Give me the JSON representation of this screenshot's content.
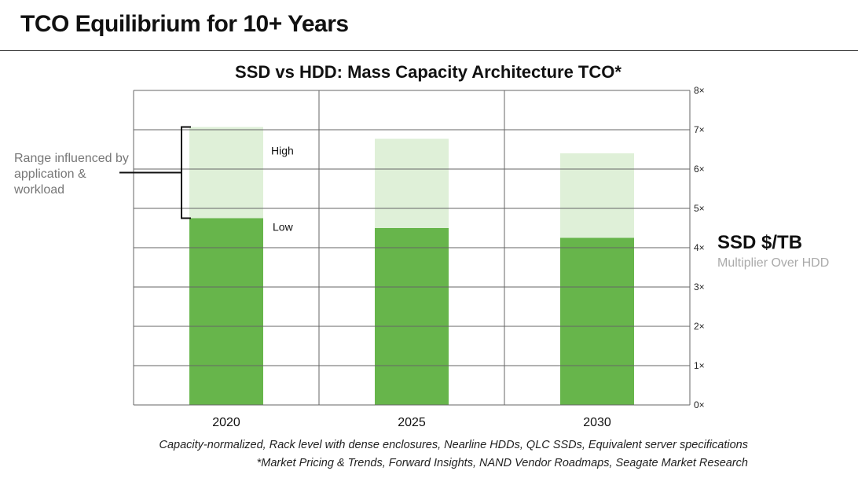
{
  "header": {
    "title": "TCO Equilibrium for 10+ Years"
  },
  "annotation": {
    "range_note": "Range influenced by application & workload",
    "high_label": "High",
    "low_label": "Low"
  },
  "right_label": {
    "title": "SSD $/TB",
    "subtitle": "Multiplier Over HDD"
  },
  "footnotes": [
    "Capacity-normalized, Rack level with dense enclosures, Nearline HDDs, QLC SSDs, Equivalent server specifications",
    "*Market Pricing & Trends, Forward Insights, NAND Vendor Roadmaps, Seagate Market Research"
  ],
  "chart_data": {
    "type": "bar",
    "title": "SSD vs HDD: Mass Capacity Architecture TCO*",
    "categories": [
      "2020",
      "2025",
      "2030"
    ],
    "series": [
      {
        "name": "Low",
        "values": [
          4.75,
          4.5,
          4.25
        ]
      },
      {
        "name": "High",
        "values": [
          7.07,
          6.77,
          6.4
        ]
      }
    ],
    "stacked_range": true,
    "ylim": [
      0,
      8
    ],
    "y_ticks": [
      "0×",
      "1×",
      "2×",
      "3×",
      "4×",
      "5×",
      "6×",
      "7×",
      "8×"
    ],
    "y_axis_side": "right",
    "grid": true,
    "colors": {
      "low": "#67b54b",
      "high": "#dff0d8",
      "grid": "#666666",
      "bracket": "#111111"
    }
  }
}
